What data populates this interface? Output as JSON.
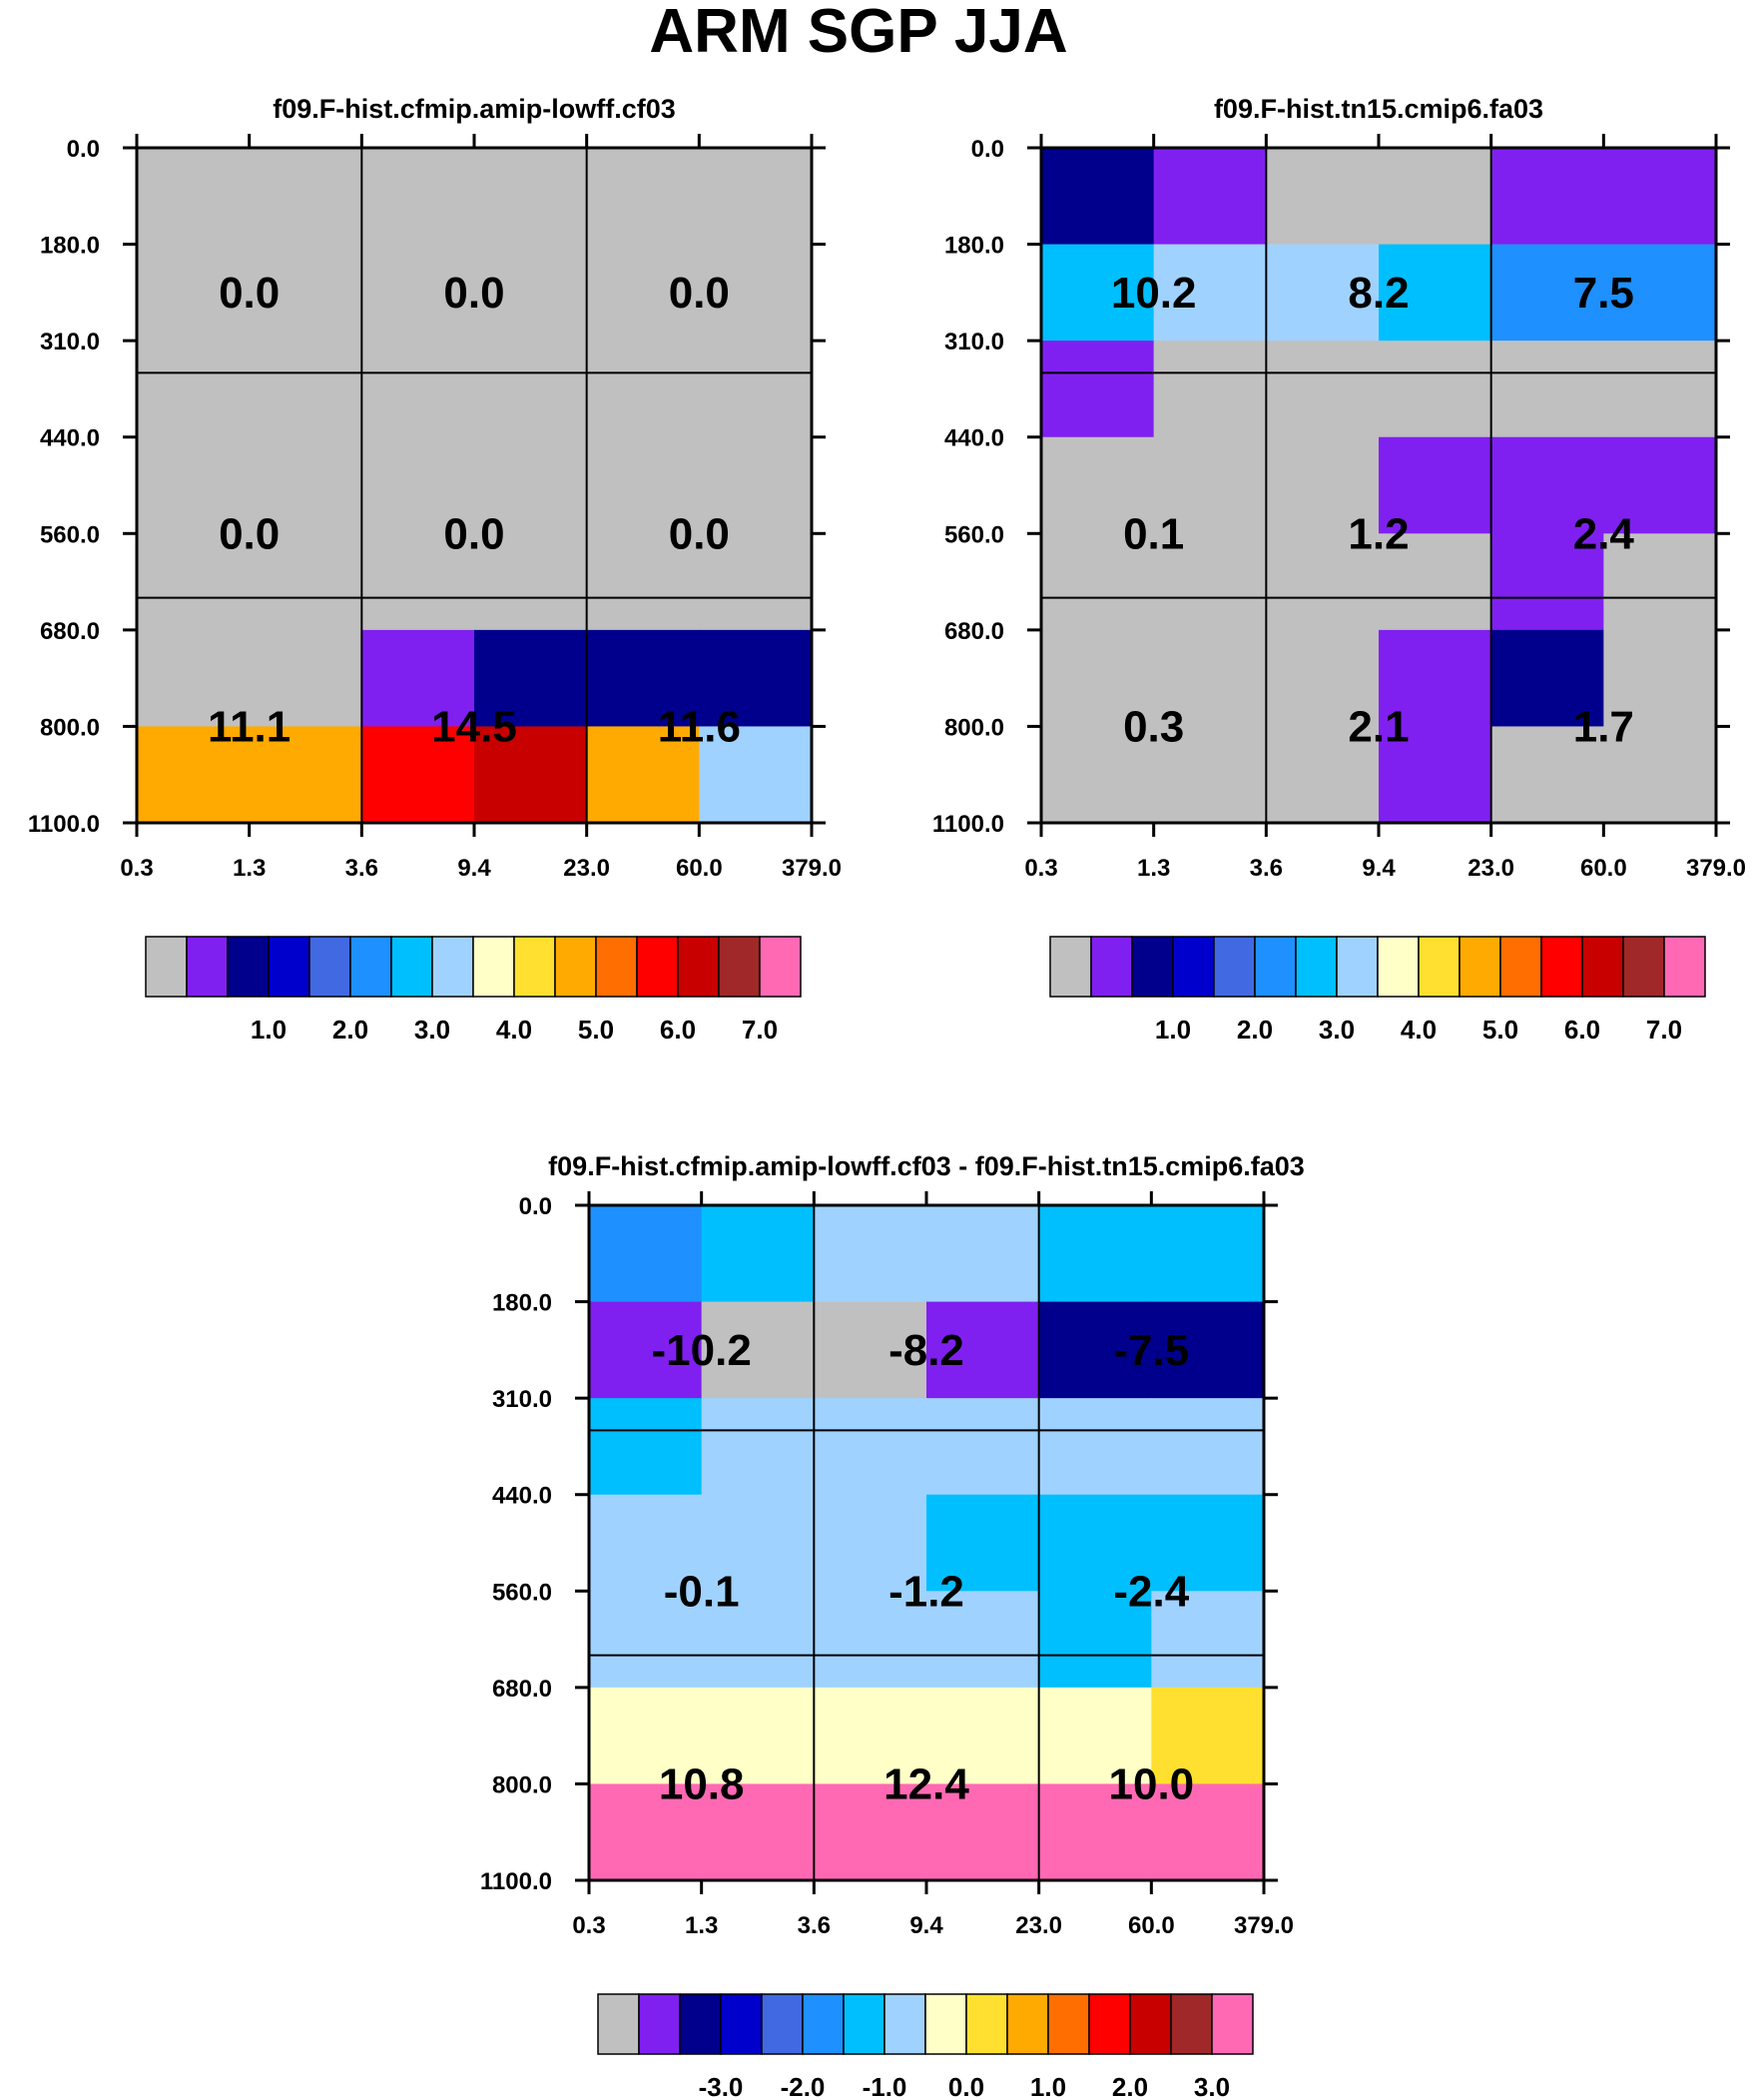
{
  "title": "ARM SGP JJA",
  "colors": {
    "palette": [
      "#c0c0c0",
      "#8020f0",
      "#00008c",
      "#0000cd",
      "#4169e1",
      "#1e90ff",
      "#00bfff",
      "#a0d2ff",
      "#ffffc8",
      "#ffe030",
      "#ffaa00",
      "#ff6e00",
      "#ff0000",
      "#c80000",
      "#a02828",
      "#ff69b4"
    ]
  },
  "chart_data": [
    {
      "type": "heatmap",
      "title": "f09.F-hist.cfmip.amip-lowff.cf03",
      "xlabel": "",
      "ylabel": "",
      "x_ticks": [
        "0.3",
        "1.3",
        "3.6",
        "9.4",
        "23.0",
        "60.0",
        "379.0"
      ],
      "y_ticks": [
        "0.0",
        "180.0",
        "310.0",
        "440.0",
        "560.0",
        "680.0",
        "800.0",
        "1100.0"
      ],
      "cell_color_index": [
        [
          0,
          0,
          0,
          0,
          0,
          0
        ],
        [
          0,
          0,
          0,
          0,
          0,
          0
        ],
        [
          0,
          0,
          0,
          0,
          0,
          0
        ],
        [
          0,
          0,
          0,
          0,
          0,
          0
        ],
        [
          0,
          0,
          0,
          0,
          0,
          0
        ],
        [
          0,
          0,
          1,
          2,
          2,
          2
        ],
        [
          10,
          10,
          12,
          13,
          10,
          7
        ]
      ],
      "group_totals": [
        [
          "0.0",
          "0.0",
          "0.0"
        ],
        [
          "0.0",
          "0.0",
          "0.0"
        ],
        [
          "11.1",
          "14.5",
          "11.6"
        ]
      ],
      "colorbar_labels": [
        "1.0",
        "2.0",
        "3.0",
        "4.0",
        "5.0",
        "6.0",
        "7.0"
      ]
    },
    {
      "type": "heatmap",
      "title": "f09.F-hist.tn15.cmip6.fa03",
      "xlabel": "",
      "ylabel": "",
      "x_ticks": [
        "0.3",
        "1.3",
        "3.6",
        "9.4",
        "23.0",
        "60.0",
        "379.0"
      ],
      "y_ticks": [
        "0.0",
        "180.0",
        "310.0",
        "440.0",
        "560.0",
        "680.0",
        "800.0",
        "1100.0"
      ],
      "cell_color_index": [
        [
          2,
          1,
          0,
          0,
          1,
          1
        ],
        [
          6,
          7,
          7,
          6,
          5,
          5
        ],
        [
          1,
          0,
          0,
          0,
          0,
          0
        ],
        [
          0,
          0,
          0,
          1,
          1,
          1
        ],
        [
          0,
          0,
          0,
          0,
          1,
          0
        ],
        [
          0,
          0,
          0,
          1,
          2,
          0
        ],
        [
          0,
          0,
          0,
          1,
          0,
          0
        ]
      ],
      "group_totals": [
        [
          "10.2",
          "8.2",
          "7.5"
        ],
        [
          "0.1",
          "1.2",
          "2.4"
        ],
        [
          "0.3",
          "2.1",
          "1.7"
        ]
      ],
      "colorbar_labels": [
        "1.0",
        "2.0",
        "3.0",
        "4.0",
        "5.0",
        "6.0",
        "7.0"
      ]
    },
    {
      "type": "heatmap",
      "title": "f09.F-hist.cfmip.amip-lowff.cf03 - f09.F-hist.tn15.cmip6.fa03",
      "xlabel": "",
      "ylabel": "",
      "x_ticks": [
        "0.3",
        "1.3",
        "3.6",
        "9.4",
        "23.0",
        "60.0",
        "379.0"
      ],
      "y_ticks": [
        "0.0",
        "180.0",
        "310.0",
        "440.0",
        "560.0",
        "680.0",
        "800.0",
        "1100.0"
      ],
      "cell_color_index": [
        [
          5,
          6,
          7,
          7,
          6,
          6
        ],
        [
          1,
          0,
          0,
          1,
          2,
          2
        ],
        [
          6,
          7,
          7,
          7,
          7,
          7
        ],
        [
          7,
          7,
          7,
          6,
          6,
          6
        ],
        [
          7,
          7,
          7,
          7,
          6,
          7
        ],
        [
          8,
          8,
          8,
          8,
          8,
          9
        ],
        [
          15,
          15,
          15,
          15,
          15,
          15
        ]
      ],
      "group_totals": [
        [
          "-10.2",
          "-8.2",
          "-7.5"
        ],
        [
          "-0.1",
          "-1.2",
          "-2.4"
        ],
        [
          "10.8",
          "12.4",
          "10.0"
        ]
      ],
      "colorbar_labels": [
        "-3.0",
        "-2.0",
        "-1.0",
        "0.0",
        "1.0",
        "2.0",
        "3.0"
      ]
    }
  ]
}
